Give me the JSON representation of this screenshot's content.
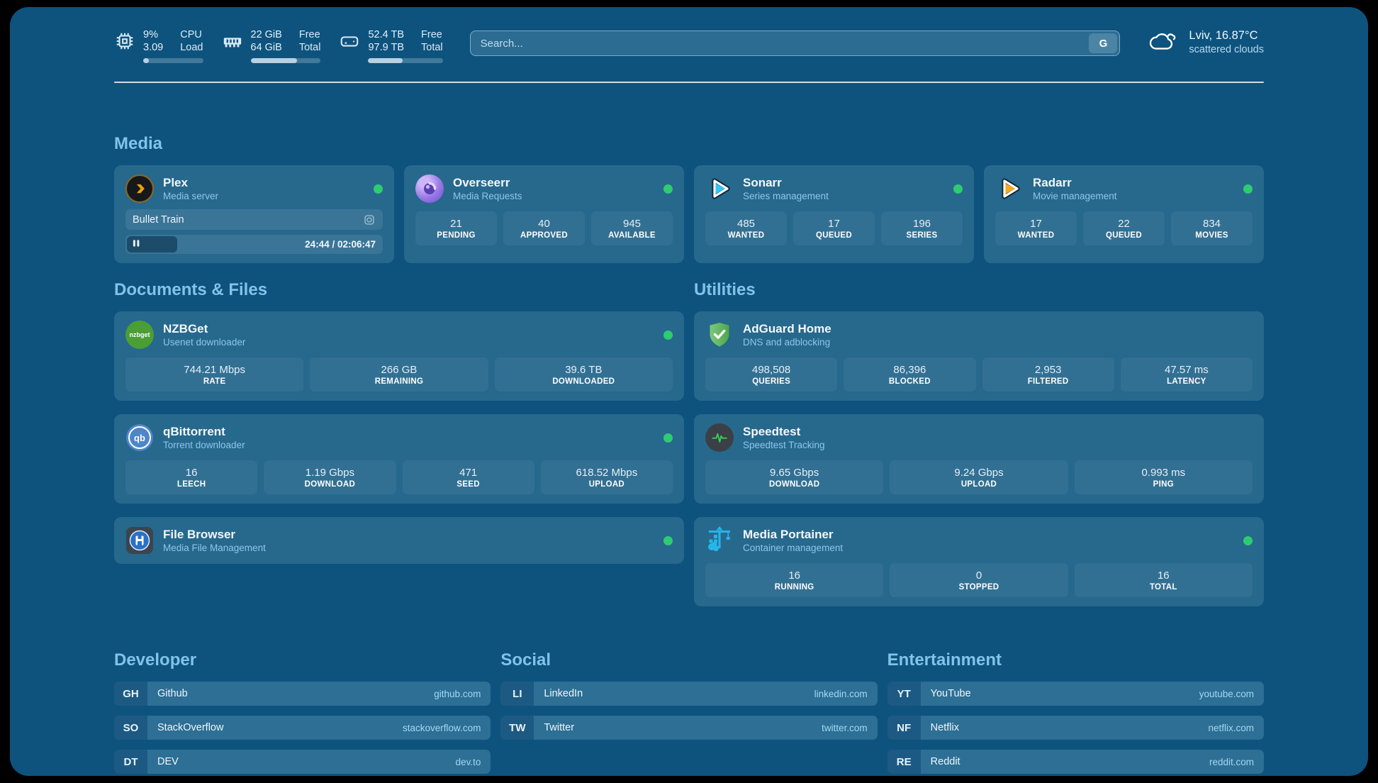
{
  "theme": {
    "background": "#0d537e",
    "card": "#27688d",
    "accent": "#82c3e9",
    "status_online": "#2ecc71"
  },
  "topbar": {
    "system_stats": [
      {
        "icon": "cpu-icon",
        "rows": [
          {
            "value": "9%",
            "label": "CPU"
          },
          {
            "value": "3.09",
            "label": "Load"
          }
        ],
        "progress_pct": 9
      },
      {
        "icon": "ram-icon",
        "rows": [
          {
            "value": "22 GiB",
            "label": "Free"
          },
          {
            "value": "64 GiB",
            "label": "Total"
          }
        ],
        "progress_pct": 66
      },
      {
        "icon": "disk-icon",
        "rows": [
          {
            "value": "52.4 TB",
            "label": "Free"
          },
          {
            "value": "97.9 TB",
            "label": "Total"
          }
        ],
        "progress_pct": 46
      }
    ],
    "search": {
      "placeholder": "Search...",
      "engine_badge": "G"
    },
    "weather": {
      "icon": "cloud-icon",
      "location": "Lviv, 16.87°C",
      "condition": "scattered clouds"
    }
  },
  "sections": {
    "media": {
      "title": "Media",
      "cards": [
        {
          "name": "Plex",
          "description": "Media server",
          "icon": "plex-icon",
          "online": true,
          "now_playing": {
            "title": "Bullet Train",
            "progress_pct": 19.5,
            "time": "24:44 / 02:06:47"
          }
        },
        {
          "name": "Overseerr",
          "description": "Media Requests",
          "icon": "overseerr-icon",
          "online": true,
          "stats": [
            {
              "value": "21",
              "label": "PENDING"
            },
            {
              "value": "40",
              "label": "APPROVED"
            },
            {
              "value": "945",
              "label": "AVAILABLE"
            }
          ]
        },
        {
          "name": "Sonarr",
          "description": "Series management",
          "icon": "sonarr-icon",
          "online": true,
          "stats": [
            {
              "value": "485",
              "label": "WANTED"
            },
            {
              "value": "17",
              "label": "QUEUED"
            },
            {
              "value": "196",
              "label": "SERIES"
            }
          ]
        },
        {
          "name": "Radarr",
          "description": "Movie management",
          "icon": "radarr-icon",
          "online": true,
          "stats": [
            {
              "value": "17",
              "label": "WANTED"
            },
            {
              "value": "22",
              "label": "QUEUED"
            },
            {
              "value": "834",
              "label": "MOVIES"
            }
          ]
        }
      ]
    },
    "documents": {
      "title": "Documents & Files",
      "cards": [
        {
          "name": "NZBGet",
          "description": "Usenet downloader",
          "icon": "nzbget-icon",
          "online": true,
          "stats": [
            {
              "value": "744.21 Mbps",
              "label": "RATE"
            },
            {
              "value": "266 GB",
              "label": "REMAINING"
            },
            {
              "value": "39.6 TB",
              "label": "DOWNLOADED"
            }
          ]
        },
        {
          "name": "qBittorrent",
          "description": "Torrent downloader",
          "icon": "qbittorrent-icon",
          "online": true,
          "stats": [
            {
              "value": "16",
              "label": "LEECH"
            },
            {
              "value": "1.19 Gbps",
              "label": "DOWNLOAD"
            },
            {
              "value": "471",
              "label": "SEED"
            },
            {
              "value": "618.52 Mbps",
              "label": "UPLOAD"
            }
          ]
        },
        {
          "name": "File Browser",
          "description": "Media File Management",
          "icon": "filebrowser-icon",
          "online": true
        }
      ]
    },
    "utilities": {
      "title": "Utilities",
      "cards": [
        {
          "name": "AdGuard Home",
          "description": "DNS and adblocking",
          "icon": "adguard-icon",
          "online": false,
          "stats": [
            {
              "value": "498,508",
              "label": "QUERIES"
            },
            {
              "value": "86,396",
              "label": "BLOCKED"
            },
            {
              "value": "2,953",
              "label": "FILTERED"
            },
            {
              "value": "47.57 ms",
              "label": "LATENCY"
            }
          ]
        },
        {
          "name": "Speedtest",
          "description": "Speedtest Tracking",
          "icon": "speedtest-icon",
          "online": false,
          "stats": [
            {
              "value": "9.65 Gbps",
              "label": "DOWNLOAD"
            },
            {
              "value": "9.24 Gbps",
              "label": "UPLOAD"
            },
            {
              "value": "0.993 ms",
              "label": "PING"
            }
          ]
        },
        {
          "name": "Media Portainer",
          "description": "Container management",
          "icon": "portainer-icon",
          "online": true,
          "stats": [
            {
              "value": "16",
              "label": "RUNNING"
            },
            {
              "value": "0",
              "label": "STOPPED"
            },
            {
              "value": "16",
              "label": "TOTAL"
            }
          ]
        }
      ]
    },
    "bookmarks": [
      {
        "title": "Developer",
        "items": [
          {
            "abbr": "GH",
            "name": "Github",
            "url": "github.com"
          },
          {
            "abbr": "SO",
            "name": "StackOverflow",
            "url": "stackoverflow.com"
          },
          {
            "abbr": "DT",
            "name": "DEV",
            "url": "dev.to"
          }
        ]
      },
      {
        "title": "Social",
        "items": [
          {
            "abbr": "LI",
            "name": "LinkedIn",
            "url": "linkedin.com"
          },
          {
            "abbr": "TW",
            "name": "Twitter",
            "url": "twitter.com"
          }
        ]
      },
      {
        "title": "Entertainment",
        "items": [
          {
            "abbr": "YT",
            "name": "YouTube",
            "url": "youtube.com"
          },
          {
            "abbr": "NF",
            "name": "Netflix",
            "url": "netflix.com"
          },
          {
            "abbr": "RE",
            "name": "Reddit",
            "url": "reddit.com"
          }
        ]
      }
    ]
  }
}
